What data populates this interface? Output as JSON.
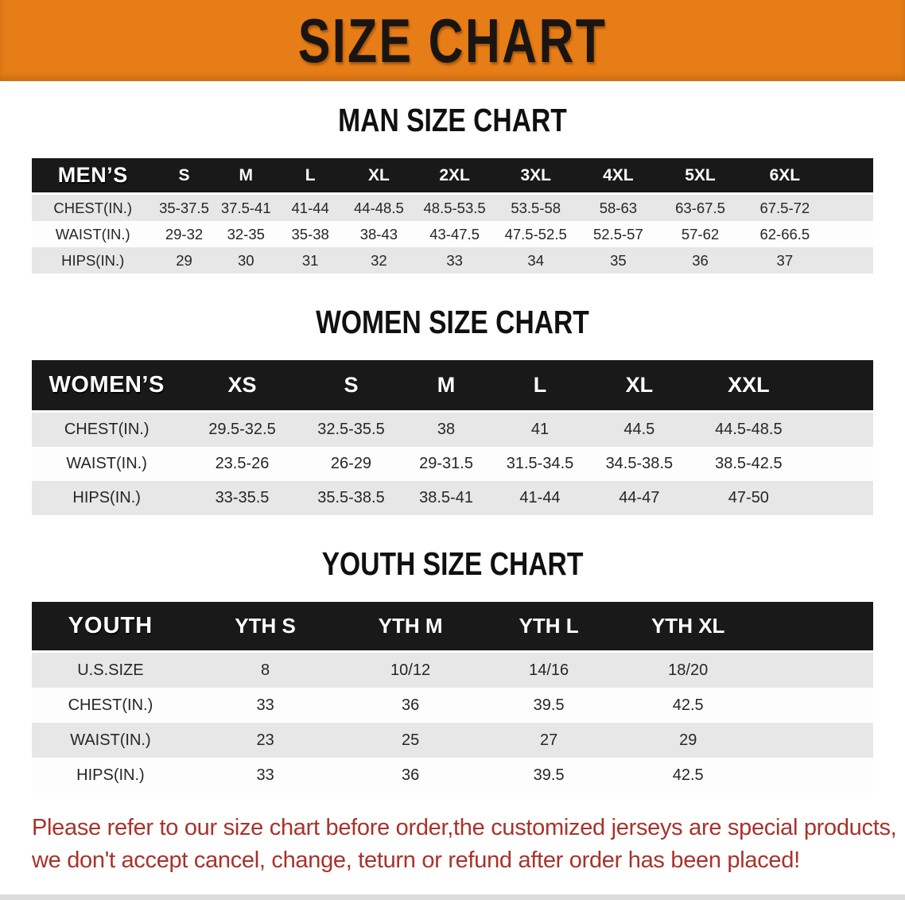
{
  "banner": {
    "title": "SIZE CHART",
    "bg_color": "#e67d17",
    "text_color": "#1a1512"
  },
  "colors": {
    "table_header_bg": "#191919",
    "table_header_text": "#ffffff",
    "shaded_row_bg": "#e7e7e7",
    "footer_text": "#a9322a"
  },
  "sections": [
    {
      "heading": "MAN SIZE CHART",
      "label": "MEN’S",
      "columns": [
        "S",
        "M",
        "L",
        "XL",
        "2XL",
        "3XL",
        "4XL",
        "5XL",
        "6XL"
      ],
      "rows": [
        {
          "label": "CHEST(IN.)",
          "values": [
            "35-37.5",
            "37.5-41",
            "41-44",
            "44-48.5",
            "48.5-53.5",
            "53.5-58",
            "58-63",
            "63-67.5",
            "67.5-72"
          ]
        },
        {
          "label": "WAIST(IN.)",
          "values": [
            "29-32",
            "32-35",
            "35-38",
            "38-43",
            "43-47.5",
            "47.5-52.5",
            "52.5-57",
            "57-62",
            "62-66.5"
          ]
        },
        {
          "label": "HIPS(IN.)",
          "values": [
            "29",
            "30",
            "31",
            "32",
            "33",
            "34",
            "35",
            "36",
            "37"
          ]
        }
      ]
    },
    {
      "heading": "WOMEN SIZE CHART",
      "label": "WOMEN’S",
      "columns": [
        "XS",
        "S",
        "M",
        "L",
        "XL",
        "XXL"
      ],
      "rows": [
        {
          "label": "CHEST(IN.)",
          "values": [
            "29.5-32.5",
            "32.5-35.5",
            "38",
            "41",
            "44.5",
            "44.5-48.5"
          ]
        },
        {
          "label": "WAIST(IN.)",
          "values": [
            "23.5-26",
            "26-29",
            "29-31.5",
            "31.5-34.5",
            "34.5-38.5",
            "38.5-42.5"
          ]
        },
        {
          "label": "HIPS(IN.)",
          "values": [
            "33-35.5",
            "35.5-38.5",
            "38.5-41",
            "41-44",
            "44-47",
            "47-50"
          ]
        }
      ]
    },
    {
      "heading": "YOUTH SIZE CHART",
      "label": "YOUTH",
      "columns": [
        "YTH S",
        "YTH M",
        "YTH L",
        "YTH XL"
      ],
      "rows": [
        {
          "label": "U.S.SIZE",
          "values": [
            "8",
            "10/12",
            "14/16",
            "18/20"
          ]
        },
        {
          "label": "CHEST(IN.)",
          "values": [
            "33",
            "36",
            "39.5",
            "42.5"
          ]
        },
        {
          "label": "WAIST(IN.)",
          "values": [
            "23",
            "25",
            "27",
            "29"
          ]
        },
        {
          "label": "HIPS(IN.)",
          "values": [
            "33",
            "36",
            "39.5",
            "42.5"
          ]
        }
      ]
    }
  ],
  "footer": {
    "line1": "Please refer to our size chart before order,the customized jerseys are special products,",
    "line2": "we don't accept cancel, change, teturn or refund after order has been placed!"
  }
}
